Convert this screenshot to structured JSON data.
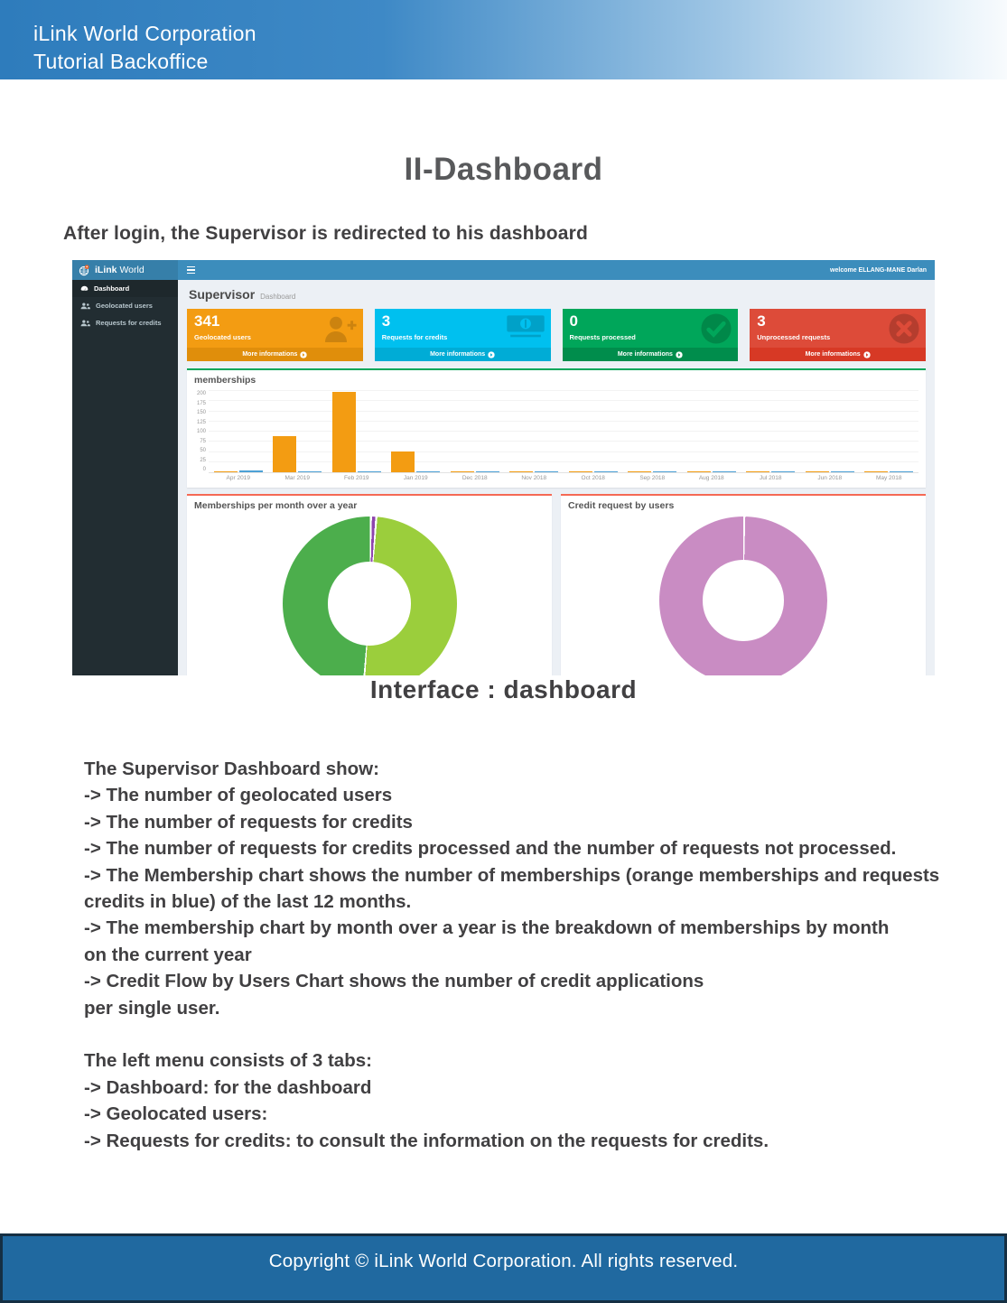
{
  "page": {
    "header": {
      "line1": "iLink World Corporation",
      "line2": "Tutorial Backoffice"
    },
    "title": "II-Dashboard",
    "intro": "After login, the Supervisor is redirected to his dashboard",
    "caption": "Interface : dashboard",
    "footer": "Copyright © iLink World Corporation. All rights reserved.",
    "body_lines": [
      "The Supervisor Dashboard show:",
      "-> The number of geolocated users",
      "-> The number of requests for credits",
      "-> The number of requests for credits processed and the number of requests not processed.",
      "-> The Membership chart shows the number of memberships (orange memberships and requests",
      "credits in blue) of the last 12 months.",
      "-> The membership chart by month over a year is the breakdown of memberships by month",
      "on the current year",
      "-> Credit Flow by Users Chart shows the number of credit applications",
      "per single user.",
      "",
      "The left menu consists of 3 tabs:",
      "-> Dashboard: for the dashboard",
      "-> Geolocated users:",
      "-> Requests for credits: to consult the information on the requests for credits."
    ]
  },
  "dashboard": {
    "brand": {
      "bold": "iLink",
      "regular": "World"
    },
    "welcome": "welcome ELLANG-MANE Darlan",
    "topbar_color": "#3c8dbc",
    "logo_bg_color": "#367fa9",
    "sidebar": {
      "bg_color": "#222d32",
      "items": [
        {
          "label": "Dashboard",
          "icon": "dashboard-icon",
          "active": true
        },
        {
          "label": "Geolocated users",
          "icon": "users-icon",
          "active": false
        },
        {
          "label": "Requests for credits",
          "icon": "users-icon",
          "active": false
        }
      ]
    },
    "page_heading": {
      "title": "Supervisor",
      "subtitle": "Dashboard"
    },
    "cards": [
      {
        "value": "341",
        "label": "Geolocated users",
        "link": "More informations",
        "icon": "user-plus-icon",
        "color": "#f39c12",
        "footer_color": "#e08e0b"
      },
      {
        "value": "3",
        "label": "Requests for credits",
        "link": "More informations",
        "icon": "money-icon",
        "color": "#00c0ef",
        "footer_color": "#00acd6"
      },
      {
        "value": "0",
        "label": "Requests processed",
        "link": "More informations",
        "icon": "check-circle-icon",
        "color": "#00a65a",
        "footer_color": "#008d4c"
      },
      {
        "value": "3",
        "label": "Unprocessed requests",
        "link": "More informations",
        "icon": "x-circle-icon",
        "color": "#dd4b39",
        "footer_color": "#d73925"
      }
    ]
  },
  "chart_data": [
    {
      "type": "bar",
      "title": "memberships",
      "categories": [
        "Apr 2019",
        "Mar 2019",
        "Feb 2019",
        "Jan 2019",
        "Dec 2018",
        "Nov 2018",
        "Oct 2018",
        "Sep 2018",
        "Aug 2018",
        "Jul 2018",
        "Jun 2018",
        "May 2018"
      ],
      "series": [
        {
          "name": "memberships",
          "color": "#f39c12",
          "values": [
            2,
            90,
            198,
            52,
            2,
            3,
            2,
            2,
            2,
            2,
            3,
            2
          ]
        },
        {
          "name": "requests credits",
          "color": "#4da1d6",
          "values": [
            5,
            2,
            2,
            2,
            2,
            2,
            2,
            2,
            2,
            2,
            2,
            2
          ]
        }
      ],
      "xlabel": "",
      "ylabel": "",
      "ylim": [
        0,
        200
      ],
      "yticks": [
        0,
        25,
        50,
        75,
        100,
        125,
        150,
        175,
        200
      ],
      "grid": true,
      "legend": "none",
      "accent_border_color": "#00a65a"
    },
    {
      "type": "pie",
      "title": "Memberships per month over a year",
      "donut": true,
      "slices": [
        {
          "label": "slice-1",
          "value": 1,
          "color": "#8e44ad"
        },
        {
          "label": "slice-2",
          "value": 50,
          "color": "#9bce3c"
        },
        {
          "label": "slice-3",
          "value": 49,
          "color": "#4cae4c"
        }
      ],
      "accent_border_color": "#f56954"
    },
    {
      "type": "pie",
      "title": "Credit request by users",
      "donut": true,
      "slices": [
        {
          "label": "slice-1",
          "value": 100,
          "color": "#c98cc3"
        }
      ],
      "accent_border_color": "#f56954"
    }
  ]
}
